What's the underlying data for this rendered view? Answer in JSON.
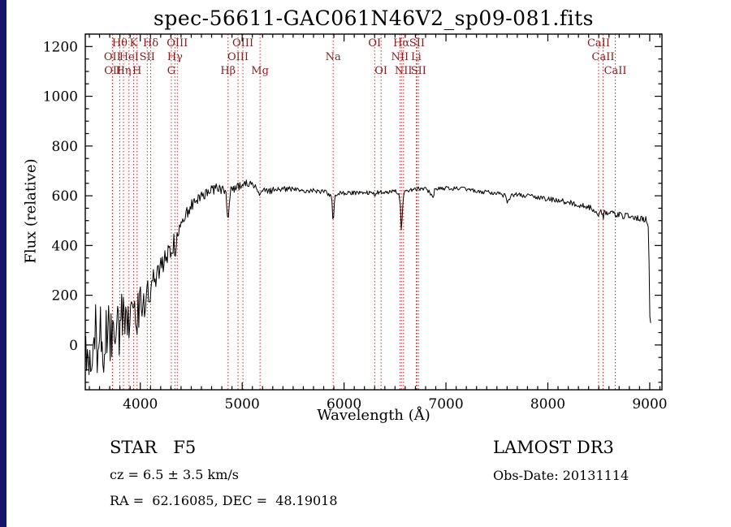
{
  "window": {
    "background": "#ffffff",
    "left_bar_color": "#14146a"
  },
  "chart_data": {
    "type": "line",
    "title": "spec-56611-GAC061N46V2_sp09-081.fits",
    "xlabel": "Wavelength (Å)",
    "ylabel": "Flux (relative)",
    "xlim": [
      3460,
      9120
    ],
    "ylim": [
      -180,
      1250
    ],
    "xticks": [
      4000,
      5000,
      6000,
      7000,
      8000,
      9000
    ],
    "yticks": [
      0,
      200,
      400,
      600,
      800,
      1000,
      1200
    ],
    "x_minor_step": 100,
    "y_minor_step": 50,
    "grid": false,
    "line_color": "#000000",
    "marker_line_color": "#c03030",
    "marker_label_color": "#8b1a1a",
    "spectral_lines": [
      {
        "label": "OII",
        "wl": 3726,
        "row": 2
      },
      {
        "label": "OII",
        "wl": 3729,
        "row": 3
      },
      {
        "label": "Hθ",
        "wl": 3798,
        "row": 1
      },
      {
        "label": "Hη",
        "wl": 3835,
        "row": 3
      },
      {
        "label": "HeI",
        "wl": 3889,
        "row": 2
      },
      {
        "label": "K",
        "wl": 3934,
        "row": 1
      },
      {
        "label": "H",
        "wl": 3968,
        "row": 3
      },
      {
        "label": "SII",
        "wl": 4068,
        "row": 2
      },
      {
        "label": "Hδ",
        "wl": 4102,
        "row": 1
      },
      {
        "label": "G",
        "wl": 4305,
        "row": 3
      },
      {
        "label": "Hγ",
        "wl": 4340,
        "row": 2
      },
      {
        "label": "OIII",
        "wl": 4363,
        "row": 1
      },
      {
        "label": "Hβ",
        "wl": 4861,
        "row": 3
      },
      {
        "label": "OIII",
        "wl": 4959,
        "row": 2
      },
      {
        "label": "OIII",
        "wl": 5007,
        "row": 1
      },
      {
        "label": "Mg",
        "wl": 5175,
        "row": 3
      },
      {
        "label": "Na",
        "wl": 5893,
        "row": 2
      },
      {
        "label": "OI",
        "wl": 6300,
        "row": 1
      },
      {
        "label": "OI",
        "wl": 6363,
        "row": 3
      },
      {
        "label": "NII",
        "wl": 6548,
        "row": 2
      },
      {
        "label": "Hα",
        "wl": 6563,
        "row": 1
      },
      {
        "label": "NII",
        "wl": 6583,
        "row": 3
      },
      {
        "label": "Li",
        "wl": 6708,
        "row": 2
      },
      {
        "label": "SII",
        "wl": 6716,
        "row": 1
      },
      {
        "label": "SII",
        "wl": 6731,
        "row": 3
      },
      {
        "label": "CaII",
        "wl": 8498,
        "row": 1
      },
      {
        "label": "CaII",
        "wl": 8542,
        "row": 2
      },
      {
        "label": "CaII",
        "wl": 8662,
        "row": 3
      }
    ],
    "continuum_points": [
      [
        3465,
        0
      ],
      [
        3550,
        15
      ],
      [
        3650,
        25
      ],
      [
        3720,
        40
      ],
      [
        3760,
        60
      ],
      [
        3800,
        80
      ],
      [
        3840,
        100
      ],
      [
        3880,
        120
      ],
      [
        3910,
        140
      ],
      [
        3933,
        85
      ],
      [
        3950,
        148
      ],
      [
        3968,
        95
      ],
      [
        3985,
        155
      ],
      [
        4000,
        165
      ],
      [
        4050,
        195
      ],
      [
        4090,
        225
      ],
      [
        4101,
        150
      ],
      [
        4112,
        235
      ],
      [
        4150,
        268
      ],
      [
        4200,
        308
      ],
      [
        4250,
        348
      ],
      [
        4290,
        378
      ],
      [
        4305,
        348
      ],
      [
        4320,
        398
      ],
      [
        4330,
        408
      ],
      [
        4340,
        328
      ],
      [
        4352,
        418
      ],
      [
        4400,
        478
      ],
      [
        4450,
        523
      ],
      [
        4500,
        558
      ],
      [
        4550,
        583
      ],
      [
        4600,
        603
      ],
      [
        4650,
        616
      ],
      [
        4700,
        624
      ],
      [
        4750,
        628
      ],
      [
        4800,
        624
      ],
      [
        4840,
        617
      ],
      [
        4861,
        490
      ],
      [
        4882,
        621
      ],
      [
        4920,
        629
      ],
      [
        4960,
        634
      ],
      [
        5000,
        641
      ],
      [
        5050,
        652
      ],
      [
        5100,
        644
      ],
      [
        5150,
        630
      ],
      [
        5175,
        600
      ],
      [
        5200,
        630
      ],
      [
        5270,
        617
      ],
      [
        5330,
        629
      ],
      [
        5400,
        627
      ],
      [
        5500,
        625
      ],
      [
        5600,
        622
      ],
      [
        5700,
        620
      ],
      [
        5800,
        617
      ],
      [
        5878,
        599
      ],
      [
        5893,
        478
      ],
      [
        5908,
        599
      ],
      [
        5960,
        611
      ],
      [
        6000,
        609
      ],
      [
        6100,
        612
      ],
      [
        6200,
        615
      ],
      [
        6280,
        611
      ],
      [
        6300,
        599
      ],
      [
        6320,
        613
      ],
      [
        6400,
        615
      ],
      [
        6495,
        619
      ],
      [
        6540,
        609
      ],
      [
        6556,
        540
      ],
      [
        6563,
        434
      ],
      [
        6572,
        540
      ],
      [
        6590,
        614
      ],
      [
        6650,
        624
      ],
      [
        6700,
        627
      ],
      [
        6750,
        629
      ],
      [
        6800,
        631
      ],
      [
        6860,
        604
      ],
      [
        6875,
        594
      ],
      [
        6890,
        624
      ],
      [
        6950,
        629
      ],
      [
        7000,
        631
      ],
      [
        7100,
        629
      ],
      [
        7180,
        627
      ],
      [
        7250,
        621
      ],
      [
        7300,
        618
      ],
      [
        7400,
        615
      ],
      [
        7500,
        612
      ],
      [
        7580,
        599
      ],
      [
        7600,
        577
      ],
      [
        7615,
        579
      ],
      [
        7640,
        601
      ],
      [
        7700,
        604
      ],
      [
        7800,
        598
      ],
      [
        7900,
        593
      ],
      [
        8000,
        587
      ],
      [
        8100,
        581
      ],
      [
        8180,
        575
      ],
      [
        8250,
        569
      ],
      [
        8320,
        562
      ],
      [
        8400,
        553
      ],
      [
        8450,
        547
      ],
      [
        8490,
        534
      ],
      [
        8498,
        511
      ],
      [
        8508,
        535
      ],
      [
        8535,
        531
      ],
      [
        8542,
        504
      ],
      [
        8552,
        531
      ],
      [
        8600,
        531
      ],
      [
        8655,
        524
      ],
      [
        8662,
        497
      ],
      [
        8672,
        523
      ],
      [
        8720,
        521
      ],
      [
        8800,
        517
      ],
      [
        8880,
        512
      ],
      [
        8940,
        507
      ],
      [
        8975,
        502
      ],
      [
        8988,
        478
      ],
      [
        8996,
        240
      ],
      [
        9002,
        95
      ],
      [
        9012,
        90
      ]
    ],
    "noise_profile": [
      [
        3465,
        170
      ],
      [
        3560,
        160
      ],
      [
        3690,
        150
      ],
      [
        3760,
        140
      ],
      [
        3830,
        124
      ],
      [
        3900,
        100
      ],
      [
        3960,
        90
      ],
      [
        4020,
        80
      ],
      [
        4080,
        70
      ],
      [
        4150,
        58
      ],
      [
        4250,
        48
      ],
      [
        4350,
        40
      ],
      [
        4450,
        32
      ],
      [
        4550,
        27
      ],
      [
        4650,
        24
      ],
      [
        4800,
        20
      ],
      [
        5000,
        16
      ],
      [
        5200,
        13
      ],
      [
        5400,
        11
      ],
      [
        5700,
        10
      ],
      [
        6000,
        9
      ],
      [
        6300,
        9
      ],
      [
        6563,
        8
      ],
      [
        7000,
        8
      ],
      [
        7500,
        9
      ],
      [
        8000,
        10
      ],
      [
        8400,
        12
      ],
      [
        8700,
        13
      ],
      [
        8960,
        14
      ],
      [
        9012,
        8
      ]
    ]
  },
  "annotations": {
    "class_label": "STAR   F5",
    "survey": "LAMOST DR3",
    "cz": "cz = 6.5 ± 3.5 km/s",
    "obs_date": "Obs-Date: 20131114",
    "radec": "RA =  62.16085, DEC =  48.19018"
  }
}
